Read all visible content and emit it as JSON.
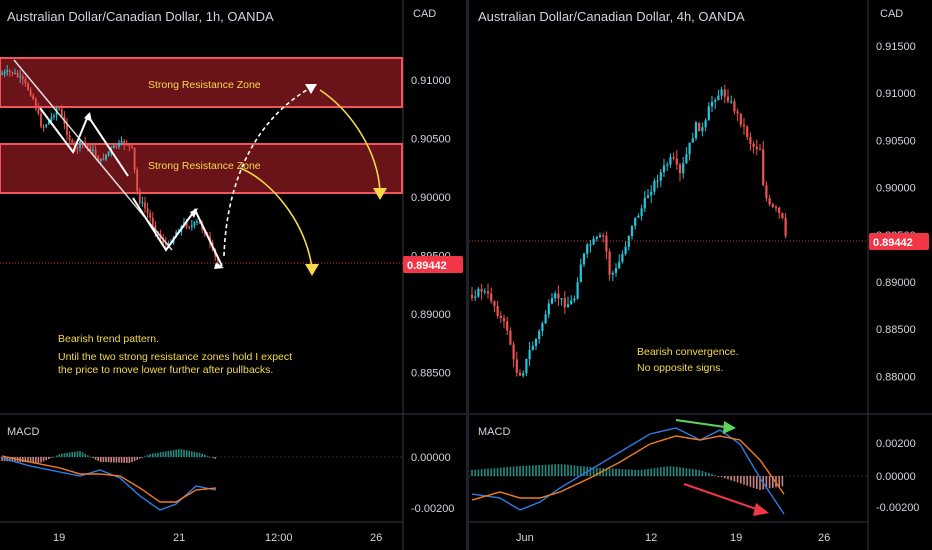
{
  "colors": {
    "background": "#000000",
    "up_candle": "#26c6da",
    "down_candle": "#ef5350",
    "zone_fill": "#8e1b22",
    "zone_border": "#f2545b",
    "annotation": "#f5d94a",
    "macd_line": "#2f7be6",
    "signal_line": "#f07d21",
    "price_tag": "#f23645",
    "green_arrow": "#5fd35f",
    "red_arrow": "#f23645"
  },
  "chart_data": [
    {
      "type": "candlestick",
      "title": "Australian Dollar/Canadian Dollar, 1h, OANDA",
      "currency": "CAD",
      "y_ticks": [
        "0.91000",
        "0.90500",
        "0.90000",
        "0.89500",
        "0.89000",
        "0.88500"
      ],
      "y_values": [
        0.91,
        0.905,
        0.9,
        0.895,
        0.89,
        0.885
      ],
      "x_ticks": [
        "19",
        "21",
        "12:00",
        "26"
      ],
      "last_price": "0.89442",
      "resistance_zones": [
        {
          "label": "Strong Resistance Zone",
          "high": 0.9124,
          "low": 0.9077
        },
        {
          "label": "Strong Resistance Zone",
          "high": 0.9046,
          "low": 0.9004
        }
      ],
      "annotations": [
        "Bearish trend pattern.",
        "Until the two strong resistance zones hold I expect",
        "the price to move lower further after pullbacks."
      ],
      "indicator": {
        "name": "MACD",
        "y_ticks": [
          "0.00000",
          "-0.00200"
        ]
      }
    },
    {
      "type": "candlestick",
      "title": "Australian Dollar/Canadian Dollar, 4h, OANDA",
      "currency": "CAD",
      "y_ticks": [
        "0.91500",
        "0.91000",
        "0.90500",
        "0.90000",
        "0.89500",
        "0.89000",
        "0.88500",
        "0.88000"
      ],
      "y_values": [
        0.915,
        0.91,
        0.905,
        0.9,
        0.895,
        0.89,
        0.885,
        0.88
      ],
      "x_ticks": [
        "Jun",
        "12",
        "19",
        "26"
      ],
      "last_price": "0.89442",
      "annotations": [
        "Bearish convergence.",
        "No opposite signs."
      ],
      "indicator": {
        "name": "MACD",
        "y_ticks": [
          "0.00200",
          "0.00000",
          "-0.00200"
        ]
      }
    }
  ]
}
